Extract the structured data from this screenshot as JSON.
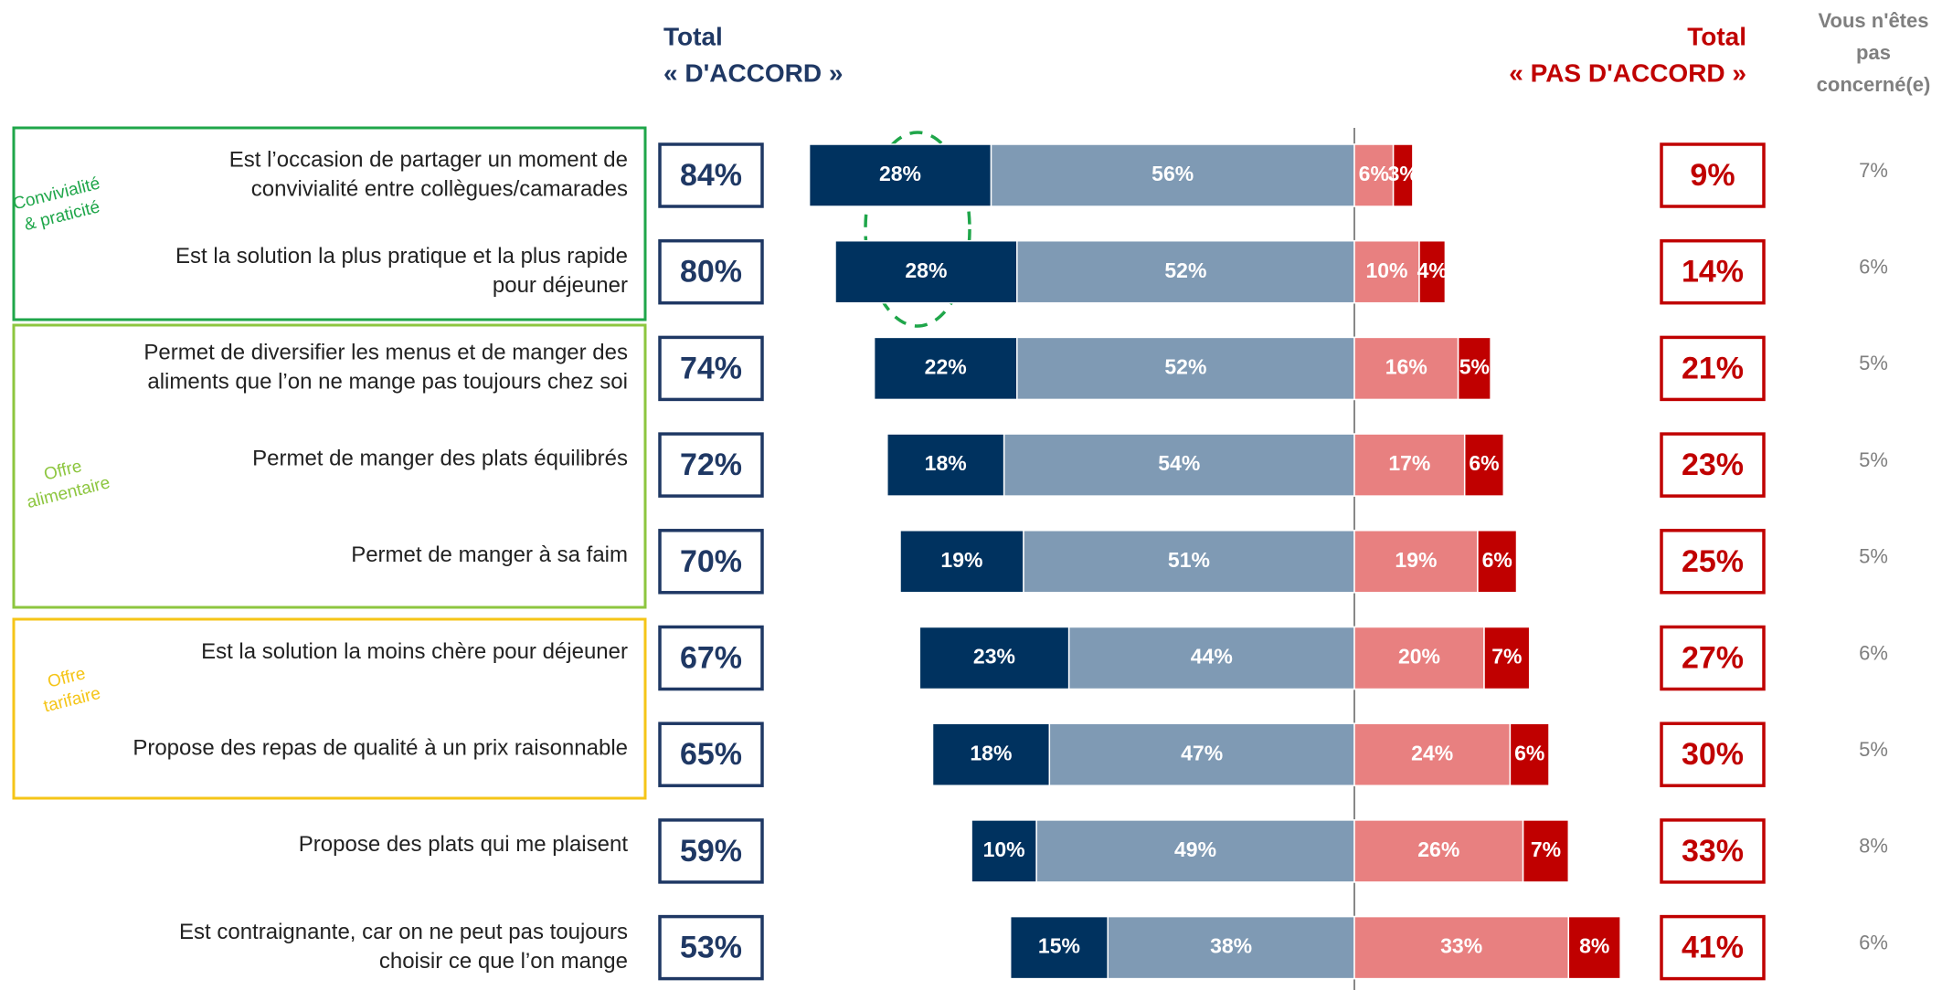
{
  "chart_data": {
    "type": "diverging_bar",
    "headers": {
      "agree": [
        "Total",
        "« D'ACCORD »"
      ],
      "disagree": [
        "Total",
        "« PAS D'ACCORD »"
      ],
      "not_concerned": [
        "Vous n'êtes",
        "pas",
        "concerné(e)"
      ]
    },
    "categories": [
      [
        "Est l’occasion de partager un moment de",
        "convivialité entre collègues/camarades"
      ],
      [
        "Est la solution la plus pratique et la plus rapide",
        "pour déjeuner"
      ],
      [
        "Permet de diversifier les menus et de manger des",
        "aliments que l’on ne mange pas toujours chez soi"
      ],
      [
        "Permet de manger des plats équilibrés"
      ],
      [
        "Permet de manger à sa faim"
      ],
      [
        "Est la solution la moins chère pour déjeuner"
      ],
      [
        "Propose des repas de qualité à un prix raisonnable"
      ],
      [
        "Propose des plats qui me plaisent"
      ],
      [
        "Est contraignante, car on ne peut pas toujours",
        "choisir ce que l’on mange"
      ]
    ],
    "groups": [
      {
        "label": [
          "Convivialité",
          "& praticité"
        ],
        "color": "#1fa64a"
      },
      {
        "label": [
          "Offre",
          "alimentaire"
        ],
        "color": "#8dc63f"
      },
      {
        "label": [
          "Offre",
          "tarifaire"
        ],
        "color": "#f5c518"
      }
    ],
    "series": [
      {
        "color": "#00325f",
        "values": [
          28,
          28,
          22,
          18,
          19,
          23,
          18,
          10,
          15
        ],
        "value_labels": [
          "28%",
          "28%",
          "22%",
          "18%",
          "19%",
          "23%",
          "18%",
          "10%",
          "15%"
        ]
      },
      {
        "color": "#7f9ab4",
        "values": [
          56,
          52,
          52,
          54,
          51,
          44,
          47,
          49,
          38
        ],
        "value_labels": [
          "56%",
          "52%",
          "52%",
          "54%",
          "51%",
          "44%",
          "47%",
          "49%",
          "38%"
        ]
      },
      {
        "color": "#e88080",
        "values": [
          6,
          10,
          16,
          17,
          19,
          20,
          24,
          26,
          33
        ],
        "value_labels": [
          "6%",
          "10%",
          "16%",
          "17%",
          "19%",
          "20%",
          "24%",
          "26%",
          "33%"
        ]
      },
      {
        "color": "#c00000",
        "values": [
          3,
          4,
          5,
          6,
          6,
          7,
          6,
          7,
          8
        ],
        "value_labels": [
          "3%",
          "4%",
          "5%",
          "6%",
          "6%",
          "7%",
          "6%",
          "7%",
          "8%"
        ]
      }
    ],
    "total_agree": {
      "color": "#1f3864",
      "values": [
        84,
        80,
        74,
        72,
        70,
        67,
        65,
        59,
        53
      ],
      "value_labels": [
        "84%",
        "80%",
        "74%",
        "72%",
        "70%",
        "67%",
        "65%",
        "59%",
        "53%"
      ]
    },
    "total_disagree": {
      "color": "#c00000",
      "values": [
        9,
        14,
        21,
        23,
        25,
        27,
        30,
        33,
        41
      ],
      "value_labels": [
        "9%",
        "14%",
        "21%",
        "23%",
        "25%",
        "27%",
        "30%",
        "33%",
        "41%"
      ]
    },
    "not_concerned": {
      "color": "#7f7f7f",
      "values": [
        7,
        6,
        5,
        5,
        5,
        6,
        5,
        8,
        6
      ],
      "value_labels": [
        "7%",
        "6%",
        "5%",
        "5%",
        "5%",
        "6%",
        "5%",
        "8%",
        "6%"
      ]
    }
  }
}
